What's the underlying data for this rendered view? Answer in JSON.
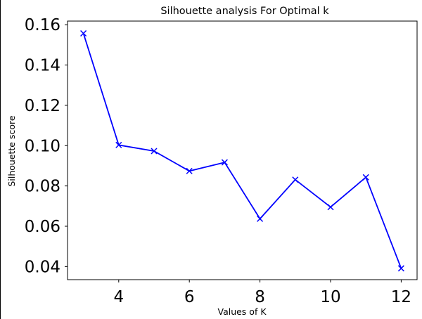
{
  "chart_data": {
    "type": "line",
    "title": "Silhouette analysis For Optimal k",
    "xlabel": "Values of K",
    "ylabel": "Silhouette score",
    "x": [
      3,
      4,
      5,
      6,
      7,
      8,
      9,
      10,
      11,
      12
    ],
    "series": [
      {
        "values": [
          0.1557,
          0.1003,
          0.0973,
          0.0874,
          0.0917,
          0.0637,
          0.0831,
          0.0695,
          0.0843,
          0.0391
        ]
      }
    ],
    "xlim": [
      2.55,
      12.45
    ],
    "ylim": [
      0.0335,
      0.1618
    ],
    "xticks": [
      4,
      6,
      8,
      10,
      12
    ],
    "yticks": [
      0.04,
      0.06,
      0.08,
      0.1,
      0.12,
      0.14,
      0.16
    ],
    "xtick_labels": [
      "4",
      "6",
      "8",
      "10",
      "12"
    ],
    "ytick_labels": [
      "0.04",
      "0.06",
      "0.08",
      "0.10",
      "0.12",
      "0.14",
      "0.16"
    ],
    "marker": "x",
    "color": "#0000ff",
    "grid": false,
    "legend": "none"
  }
}
